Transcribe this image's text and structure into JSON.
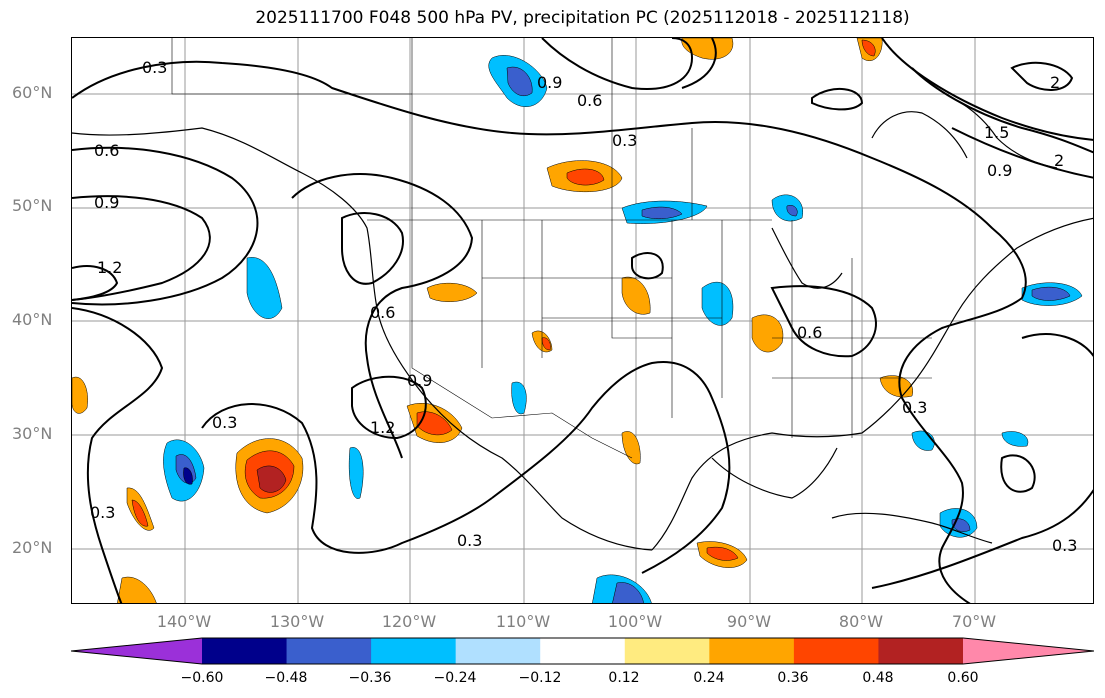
{
  "title": "2025111700 F048 500 hPa PV, precipitation PC (2025112018 - 2025112118)",
  "lat_labels": [
    "60°N",
    "50°N",
    "40°N",
    "30°N",
    "20°N"
  ],
  "lon_labels": [
    "140°W",
    "130°W",
    "120°W",
    "110°W",
    "100°W",
    "90°W",
    "80°W",
    "70°W"
  ],
  "contour_labels": [
    "0.3",
    "0.6",
    "0.9",
    "1.2",
    "1.5",
    "2"
  ],
  "colorbar": {
    "ticks": [
      "−0.60",
      "−0.48",
      "−0.36",
      "−0.24",
      "−0.12",
      "0.12",
      "0.24",
      "0.36",
      "0.48",
      "0.60"
    ],
    "colors": [
      "#9b30d9",
      "#00008b",
      "#3a5fcd",
      "#00bfff",
      "#b0e0ff",
      "#ffffff",
      "#ffeb80",
      "#ffa500",
      "#ff4500",
      "#b22222",
      "#ff88aa"
    ]
  }
}
